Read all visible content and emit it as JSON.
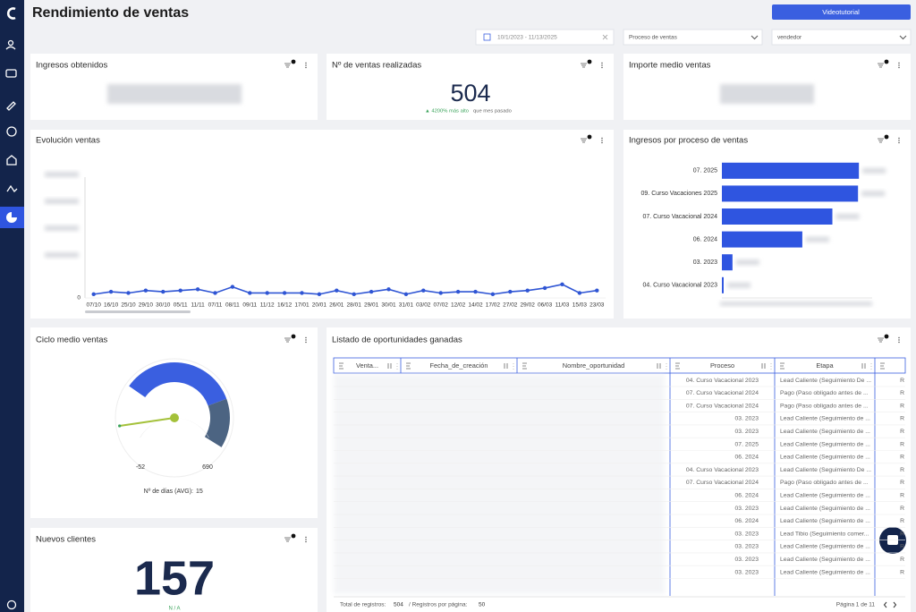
{
  "header": {
    "title": "Rendimiento de ventas",
    "button": "Videotutorial",
    "date_range": "10/1/2023 - 11/13/2025",
    "filter_process": "Proceso de ventas",
    "filter_seller": "vendedor"
  },
  "kpis": [
    {
      "title": "Ingresos obtenidos"
    },
    {
      "title": "Nº de ventas realizadas",
      "value": 504,
      "change": "▲ 4200% más alto",
      "change_suffix": "que mes pasado"
    },
    {
      "title": "Importe medio ventas"
    }
  ],
  "chart_data": [
    {
      "type": "line",
      "title": "Evolución ventas",
      "categories": [
        "07/10",
        "16/10",
        "25/10",
        "29/10",
        "30/10",
        "05/11",
        "11/11",
        "07/11",
        "08/11",
        "09/11",
        "11/12",
        "16/12",
        "17/01",
        "20/01",
        "26/01",
        "28/01",
        "29/01",
        "30/01",
        "31/01",
        "03/02",
        "07/02",
        "12/02",
        "14/02",
        "17/02",
        "27/02",
        "29/02",
        "06/03",
        "11/03",
        "15/03",
        "23/03"
      ],
      "values": [
        3,
        5,
        4,
        6,
        5,
        6,
        7,
        4,
        9,
        4,
        4,
        4,
        4,
        3,
        6,
        3,
        5,
        7,
        3,
        6,
        4,
        5,
        5,
        3,
        5,
        6,
        8,
        11,
        4,
        6
      ],
      "color": "#2f55d4",
      "ylim": [
        0,
        100
      ],
      "yticks": [
        0
      ]
    },
    {
      "type": "bar",
      "orientation": "horizontal",
      "title": "Ingresos por proceso de ventas",
      "categories": [
        "07. 2025",
        "09. Curso Vacaciones 2025",
        "07. Curso Vacacional 2024",
        "06. 2024",
        "03. 2023",
        "04. Curso Vacacional 2023"
      ],
      "values": [
        155,
        154,
        125,
        91,
        12,
        2
      ],
      "color": "#2f55e0",
      "xlim": [
        0,
        170
      ]
    },
    {
      "type": "gauge",
      "title": "Ciclo medio ventas",
      "min": -52,
      "max": 690,
      "value": 15,
      "caption": "Nº de días (AVG):",
      "color": "#a4c13a"
    }
  ],
  "new_clients": {
    "title": "Nuevos clientes",
    "value": 157,
    "note": "N / A"
  },
  "table": {
    "title": "Listado de oportunidades ganadas",
    "columns": [
      "Venta...",
      "Fecha_de_creación",
      "Nombre_oportunidad",
      "Proceso",
      "Etapa"
    ],
    "rows": [
      [
        "04. Curso Vacacional 2023",
        "Lead Caliente (Seguimiento De ...",
        "R"
      ],
      [
        "07. Curso Vacacional 2024",
        "Pago (Paso obligado antes de ...",
        "R"
      ],
      [
        "07. Curso Vacacional 2024",
        "Pago (Paso obligado antes de ...",
        "R"
      ],
      [
        "03. 2023",
        "Lead Caliente (Seguimiento de ...",
        "R"
      ],
      [
        "03. 2023",
        "Lead Caliente (Seguimiento de ...",
        "R"
      ],
      [
        "07. 2025",
        "Lead Caliente (Seguimiento de ...",
        "R"
      ],
      [
        "06. 2024",
        "Lead Caliente (Seguimiento de ...",
        "R"
      ],
      [
        "04. Curso Vacacional 2023",
        "Lead Caliente (Seguimiento De ...",
        "R"
      ],
      [
        "07. Curso Vacacional 2024",
        "Pago (Paso obligado antes de ...",
        "R"
      ],
      [
        "06. 2024",
        "Lead Caliente (Seguimiento de ...",
        "R"
      ],
      [
        "03. 2023",
        "Lead Caliente (Seguimiento de ...",
        "R"
      ],
      [
        "06. 2024",
        "Lead Caliente (Seguimiento de ...",
        "R"
      ],
      [
        "03. 2023",
        "Lead Tibio (Seguimiento comer...",
        "R"
      ],
      [
        "03. 2023",
        "Lead Caliente (Seguimiento de ...",
        "R"
      ],
      [
        "03. 2023",
        "Lead Caliente (Seguimiento de ...",
        "R"
      ],
      [
        "03. 2023",
        "Lead Caliente (Seguimiento de ...",
        "R"
      ]
    ],
    "footer": {
      "total_label": "Total de registros:",
      "total": 504,
      "per_page_label": "/ Registros por página:",
      "per_page": 50,
      "page": "Página 1 de 11"
    }
  }
}
